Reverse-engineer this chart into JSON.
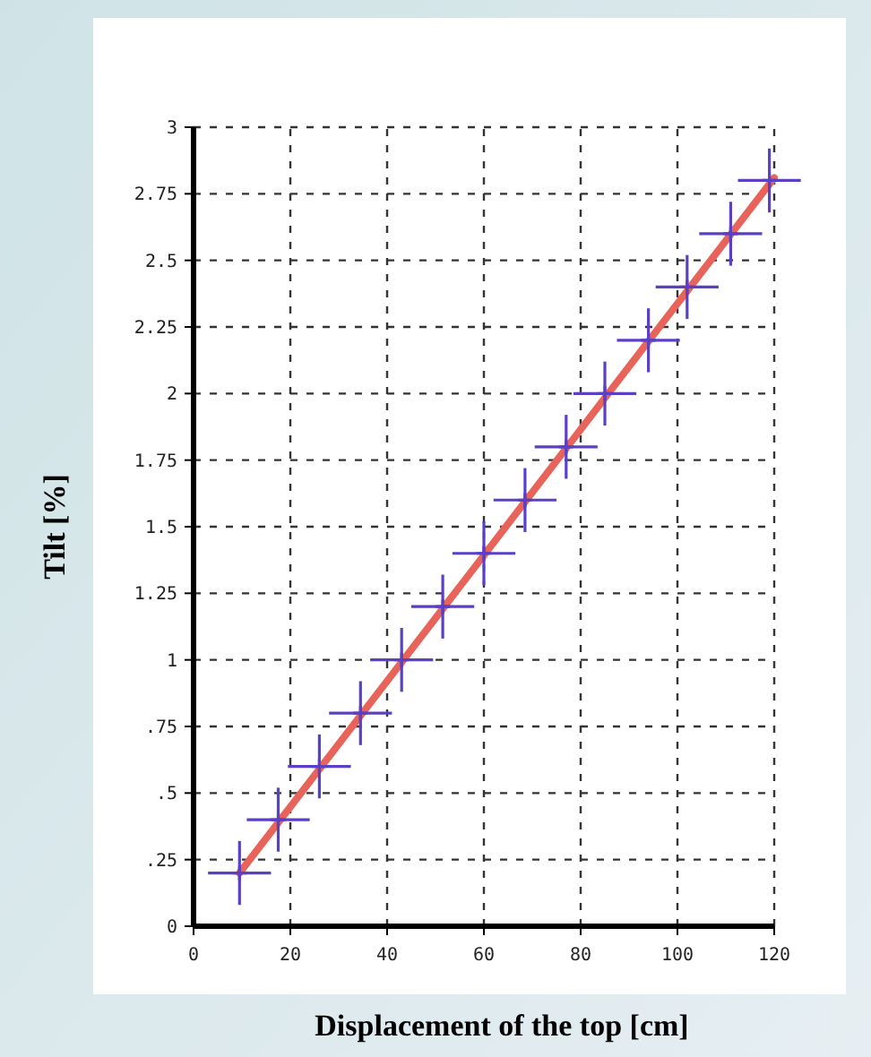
{
  "chart_data": {
    "type": "scatter",
    "xlabel": "Displacement of the top [cm]",
    "ylabel": "Tilt [%]",
    "xlim": [
      0,
      120
    ],
    "ylim": [
      0,
      3
    ],
    "xticks": [
      0,
      20,
      40,
      60,
      80,
      100,
      120
    ],
    "yticks": [
      0,
      {
        "value": 0.25,
        "label": ".25"
      },
      {
        "value": 0.5,
        "label": ".5"
      },
      {
        "value": 0.75,
        "label": ".75"
      },
      1,
      1.25,
      1.5,
      1.75,
      2,
      2.25,
      2.5,
      2.75,
      3
    ],
    "grid": true,
    "series": [
      {
        "type": "line",
        "color": "#e8645a",
        "x": [
          9.5,
          120
        ],
        "values": [
          0.2,
          2.81
        ],
        "marker": "none"
      },
      {
        "color": "#5b3fc4",
        "marker": "cross",
        "x": [
          9.5,
          17.5,
          26,
          34.5,
          43,
          51.5,
          60,
          68.5,
          77,
          85,
          94,
          102,
          111,
          119
        ],
        "values": [
          0.2,
          0.4,
          0.6,
          0.8,
          1.0,
          1.2,
          1.4,
          1.6,
          1.8,
          2.0,
          2.2,
          2.4,
          2.6,
          2.8
        ],
        "errors": [
          0.12,
          0.12,
          0.12,
          0.12,
          0.12,
          0.12,
          0.12,
          0.12,
          0.12,
          0.12,
          0.12,
          0.12,
          0.12,
          0.12
        ],
        "xerrors": [
          6.5,
          6.5,
          6.5,
          6.5,
          6.5,
          6.5,
          6.5,
          6.5,
          6.5,
          6.5,
          6.5,
          6.5,
          6.5,
          6.5
        ]
      }
    ]
  }
}
